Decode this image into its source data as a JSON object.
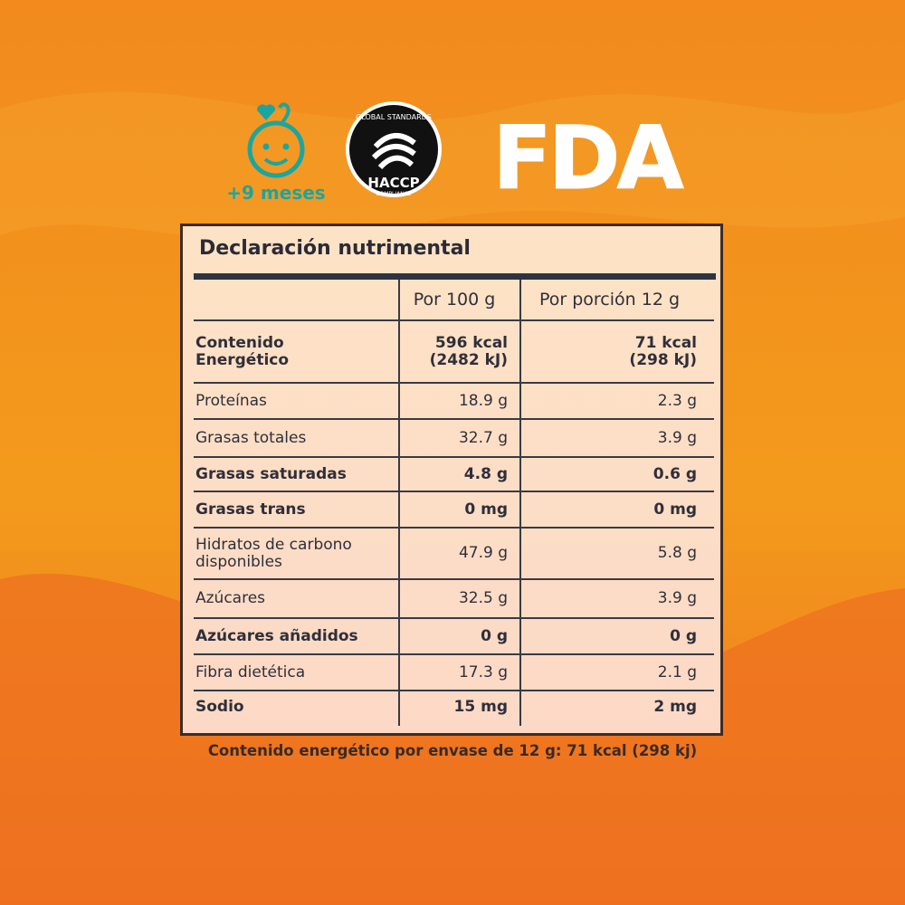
{
  "badges": {
    "age": "+9 meses",
    "haccp_top": "GLOBAL STANDARDS",
    "haccp_main": "HACCP",
    "haccp_bottom": "COMPLIANCE",
    "fda": "FDA"
  },
  "table": {
    "title": "Declaración nutrimental",
    "header": [
      "Por 100 g",
      "Por porción 12 g"
    ],
    "rows": [
      {
        "label": [
          "Contenido",
          "Energético"
        ],
        "per_100g": [
          "596 kcal",
          "(2482 kJ)"
        ],
        "per_portion": [
          "71 kcal",
          "(298 kJ)"
        ],
        "bold": true
      },
      {
        "label": "Proteínas",
        "per_100g": "18.9 g",
        "per_portion": "2.3 g",
        "bold": false
      },
      {
        "label": "Grasas totales",
        "per_100g": "32.7 g",
        "per_portion": "3.9 g",
        "bold": false
      },
      {
        "label": "Grasas saturadas",
        "per_100g": "4.8 g",
        "per_portion": "0.6 g",
        "bold": true
      },
      {
        "label": "Grasas trans",
        "per_100g": "0 mg",
        "per_portion": "0 mg",
        "bold": true
      },
      {
        "label": [
          "Hidratos de carbono",
          "disponibles"
        ],
        "per_100g": "47.9 g",
        "per_portion": "5.8 g",
        "bold": false
      },
      {
        "label": "Azúcares",
        "per_100g": "32.5 g",
        "per_portion": "3.9 g",
        "bold": false
      },
      {
        "label": "Azúcares añadidos",
        "per_100g": "0 g",
        "per_portion": "0 g",
        "bold": true
      },
      {
        "label": "Fibra dietética",
        "per_100g": "17.3 g",
        "per_portion": "2.1 g",
        "bold": false
      },
      {
        "label": "Sodio",
        "per_100g": "15 mg",
        "per_portion": "2 mg",
        "bold": true
      }
    ]
  },
  "footer": "Contenido energético por envase de 12 g: 71 kcal (298 kj)"
}
